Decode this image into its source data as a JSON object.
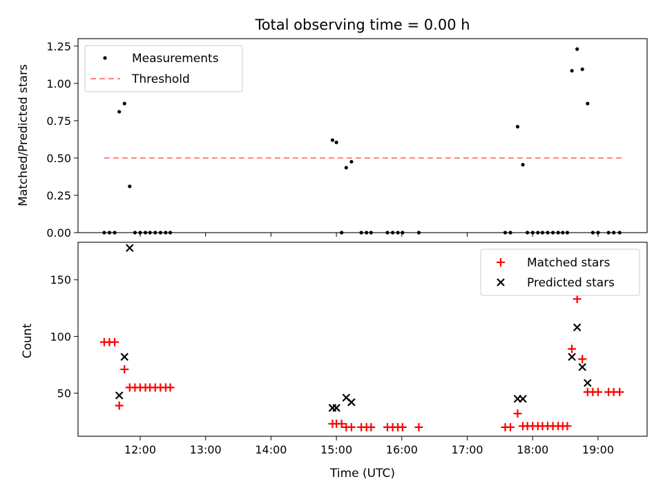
{
  "chart_data": [
    {
      "type": "scatter",
      "title": "Total observing time = 0.00 h",
      "xlabel": "",
      "ylabel": "Matched/Predicted stars",
      "xlim": [
        11.05,
        19.75
      ],
      "ylim": [
        0,
        1.3
      ],
      "yticks": [
        0.0,
        0.25,
        0.5,
        0.75,
        1.0,
        1.25
      ],
      "ytick_labels": [
        "0.00",
        "0.25",
        "0.50",
        "0.75",
        "1.00",
        "1.25"
      ],
      "xticks": [
        12,
        13,
        14,
        15,
        16,
        17,
        18,
        19
      ],
      "show_xtick_labels": false,
      "legend": {
        "position": "upper left",
        "entries": [
          "Measurements",
          "Threshold"
        ]
      },
      "series": [
        {
          "name": "Measurements",
          "marker": "dot",
          "color": "#000000",
          "x": [
            11.45,
            11.53,
            11.61,
            11.68,
            11.76,
            11.84,
            11.92,
            12.0,
            12.08,
            12.15,
            12.23,
            12.31,
            12.39,
            12.46,
            14.94,
            15.0,
            15.08,
            15.15,
            15.23,
            15.38,
            15.46,
            15.53,
            15.78,
            15.86,
            15.94,
            16.01,
            16.26,
            17.58,
            17.66,
            17.77,
            17.85,
            17.92,
            18.0,
            18.08,
            18.15,
            18.23,
            18.31,
            18.39,
            18.46,
            18.53,
            18.6,
            18.68,
            18.76,
            18.84,
            18.92,
            19.0,
            19.16,
            19.24,
            19.33
          ],
          "y": [
            0,
            0,
            0,
            0.81,
            0.865,
            0.31,
            0,
            0,
            0,
            0,
            0,
            0,
            0,
            0,
            0.62,
            0.605,
            0,
            0.435,
            0.475,
            0,
            0,
            0,
            0,
            0,
            0,
            0,
            0,
            0,
            0,
            0.71,
            0.455,
            0,
            0,
            0,
            0,
            0,
            0,
            0,
            0,
            0,
            1.085,
            1.23,
            1.095,
            0.865,
            0,
            0,
            0,
            0,
            0
          ]
        },
        {
          "name": "Threshold",
          "style": "dashed",
          "color": "#ff7f7f",
          "x": [
            11.45,
            19.37
          ],
          "y": [
            0.5,
            0.5
          ]
        }
      ]
    },
    {
      "type": "scatter",
      "title": "",
      "xlabel": "Time (UTC)",
      "ylabel": "Count",
      "xlim": [
        11.05,
        19.75
      ],
      "ylim": [
        12,
        183
      ],
      "yticks": [
        50,
        100,
        150
      ],
      "ytick_labels": [
        "50",
        "100",
        "150"
      ],
      "xticks": [
        12,
        13,
        14,
        15,
        16,
        17,
        18,
        19
      ],
      "xtick_labels": [
        "12:00",
        "13:00",
        "14:00",
        "15:00",
        "16:00",
        "17:00",
        "18:00",
        "19:00"
      ],
      "legend": {
        "position": "upper right",
        "entries": [
          "Matched stars",
          "Predicted stars"
        ]
      },
      "series": [
        {
          "name": "Matched stars",
          "marker": "plus",
          "color": "#ff0000",
          "x": [
            11.45,
            11.53,
            11.61,
            11.68,
            11.76,
            11.84,
            11.92,
            12.0,
            12.08,
            12.15,
            12.23,
            12.31,
            12.39,
            12.46,
            14.94,
            15.0,
            15.08,
            15.15,
            15.23,
            15.38,
            15.46,
            15.53,
            15.78,
            15.86,
            15.94,
            16.01,
            16.26,
            17.58,
            17.66,
            17.77,
            17.85,
            17.92,
            18.0,
            18.08,
            18.15,
            18.23,
            18.31,
            18.39,
            18.46,
            18.53,
            18.6,
            18.68,
            18.76,
            18.84,
            18.92,
            19.0,
            19.16,
            19.24,
            19.33
          ],
          "y": [
            95,
            95,
            95,
            39,
            71,
            55,
            55,
            55,
            55,
            55,
            55,
            55,
            55,
            55,
            23,
            23,
            23,
            20,
            20,
            20,
            20,
            20,
            20,
            20,
            20,
            20,
            20,
            20,
            20,
            32,
            21,
            21,
            21,
            21,
            21,
            21,
            21,
            21,
            21,
            21,
            89,
            133,
            80,
            51,
            51,
            51,
            51,
            51,
            51
          ]
        },
        {
          "name": "Predicted stars",
          "marker": "x",
          "color": "#000000",
          "x": [
            11.68,
            11.76,
            11.84,
            14.94,
            15.0,
            15.15,
            15.23,
            17.77,
            17.85,
            18.6,
            18.68,
            18.76,
            18.84
          ],
          "y": [
            48,
            82,
            178,
            37,
            37,
            46,
            42,
            45,
            45,
            82,
            108,
            73,
            59
          ]
        }
      ]
    }
  ]
}
